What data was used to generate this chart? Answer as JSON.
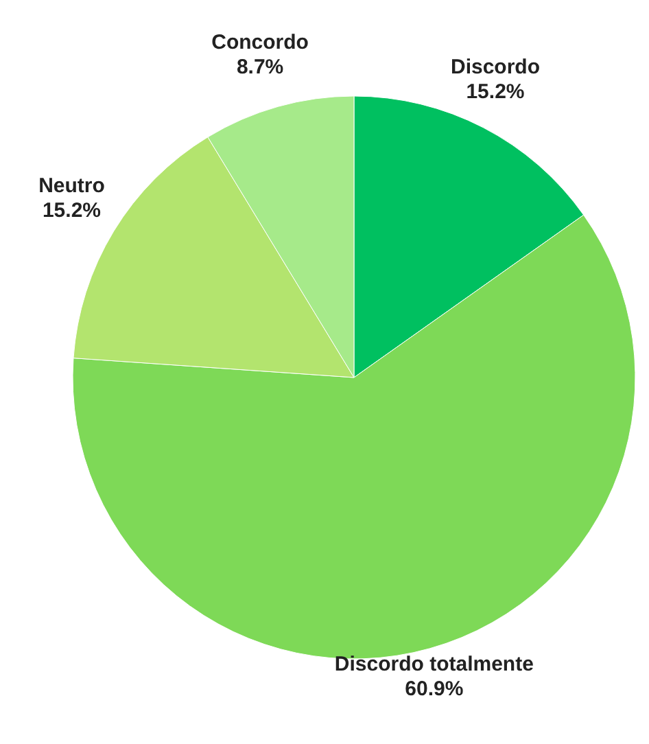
{
  "chart_data": {
    "type": "pie",
    "categories": [
      "Discordo",
      "Discordo totalmente",
      "Neutro",
      "Concordo"
    ],
    "values": [
      15.2,
      60.9,
      15.2,
      8.7
    ],
    "value_labels": [
      "15.2%",
      "60.9%",
      "15.2%",
      "8.7%"
    ],
    "colors": [
      "#00c060",
      "#7ed957",
      "#b3e46e",
      "#a6ea8a"
    ],
    "legend": false
  }
}
